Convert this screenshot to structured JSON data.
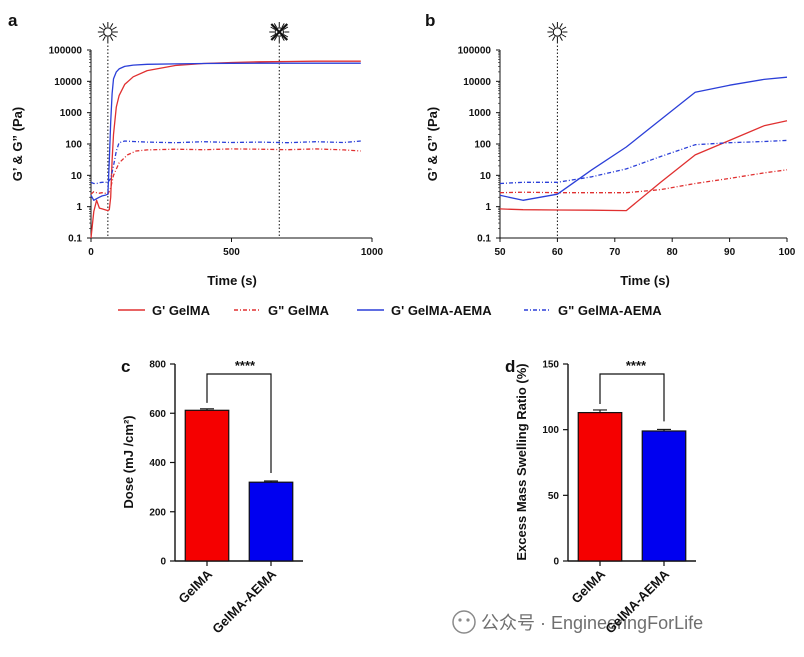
{
  "chart_data": [
    {
      "panel": "a",
      "type": "line",
      "title": "",
      "xlabel": "Time (s)",
      "ylabel": "G’ & G” (Pa)",
      "xlim": [
        0,
        1000
      ],
      "ylim": [
        0.1,
        100000
      ],
      "yscale": "log",
      "xticks": [
        0,
        500,
        1000
      ],
      "yticks": [
        "0.1",
        "1",
        "10",
        "100",
        "1000",
        "10000",
        "100000"
      ],
      "markers": [
        {
          "x": 60,
          "label": "light on"
        },
        {
          "x": 670,
          "label": "light off"
        }
      ],
      "series": [
        {
          "name": "G' GelMA",
          "color": "#e03030",
          "dash": "solid",
          "x": [
            0,
            10,
            20,
            30,
            40,
            50,
            60,
            65,
            70,
            75,
            80,
            90,
            100,
            120,
            150,
            200,
            300,
            400,
            500,
            600,
            700,
            800,
            960
          ],
          "y": [
            0.1,
            0.7,
            1.6,
            0.9,
            0.85,
            0.8,
            0.75,
            0.8,
            2,
            30,
            200,
            1500,
            3500,
            8000,
            14000,
            22000,
            32000,
            37000,
            40000,
            42000,
            43000,
            44000,
            44000
          ]
        },
        {
          "name": "G\" GelMA",
          "color": "#e03030",
          "dash": "dashdot",
          "x": [
            0,
            10,
            20,
            30,
            40,
            50,
            60,
            70,
            80,
            100,
            130,
            160,
            200,
            300,
            400,
            500,
            600,
            700,
            800,
            900,
            960
          ],
          "y": [
            2.5,
            3,
            2.8,
            2.7,
            2.8,
            2.7,
            2.5,
            4,
            10,
            25,
            45,
            60,
            65,
            68,
            66,
            70,
            68,
            66,
            70,
            65,
            60
          ]
        },
        {
          "name": "G' GelMA-AEMA",
          "color": "#2b3fd8",
          "dash": "solid",
          "x": [
            0,
            10,
            20,
            30,
            40,
            50,
            60,
            65,
            70,
            75,
            80,
            90,
            100,
            120,
            150,
            200,
            300,
            400,
            500,
            600,
            700,
            800,
            960
          ],
          "y": [
            2.3,
            1.6,
            1.8,
            2.0,
            2.2,
            2.3,
            2.5,
            30,
            500,
            4000,
            12000,
            20000,
            25000,
            30000,
            33000,
            35000,
            36000,
            37000,
            37500,
            38000,
            38000,
            38000,
            38000
          ]
        },
        {
          "name": "G\" GelMA-AEMA",
          "color": "#2b3fd8",
          "dash": "dashdot",
          "x": [
            0,
            10,
            20,
            30,
            40,
            50,
            60,
            70,
            80,
            90,
            100,
            120,
            150,
            200,
            300,
            400,
            500,
            600,
            700,
            800,
            900,
            960
          ],
          "y": [
            6,
            5.5,
            5.5,
            5.8,
            6,
            6,
            6,
            8,
            20,
            60,
            110,
            125,
            120,
            115,
            110,
            118,
            112,
            115,
            110,
            118,
            112,
            125
          ]
        }
      ]
    },
    {
      "panel": "b",
      "type": "line",
      "title": "",
      "xlabel": "Time (s)",
      "ylabel": "G’ & G” (Pa)",
      "xlim": [
        50,
        100
      ],
      "ylim": [
        0.1,
        100000
      ],
      "yscale": "log",
      "xticks": [
        50,
        60,
        70,
        80,
        90,
        100
      ],
      "yticks": [
        "0.1",
        "1",
        "10",
        "100",
        "1000",
        "10000",
        "100000"
      ],
      "markers": [
        {
          "x": 60,
          "label": "light on"
        }
      ],
      "series": [
        {
          "name": "G' GelMA",
          "color": "#e03030",
          "dash": "solid",
          "x": [
            50,
            54,
            60,
            66,
            72,
            78,
            84,
            90,
            96,
            100
          ],
          "y": [
            0.85,
            0.8,
            0.78,
            0.77,
            0.75,
            6,
            45,
            130,
            380,
            550
          ]
        },
        {
          "name": "G\" GelMA",
          "color": "#e03030",
          "dash": "dashdot",
          "x": [
            50,
            54,
            60,
            66,
            72,
            78,
            84,
            90,
            96,
            100
          ],
          "y": [
            2.8,
            2.9,
            2.8,
            2.8,
            2.8,
            3.5,
            5.5,
            8,
            12,
            15
          ]
        },
        {
          "name": "G' GelMA-AEMA",
          "color": "#2b3fd8",
          "dash": "solid",
          "x": [
            50,
            54,
            60,
            66,
            72,
            78,
            84,
            90,
            96,
            100
          ],
          "y": [
            2.3,
            1.6,
            2.5,
            15,
            80,
            600,
            4500,
            7500,
            11500,
            13500
          ]
        },
        {
          "name": "G\" GelMA-AEMA",
          "color": "#2b3fd8",
          "dash": "dashdot",
          "x": [
            50,
            54,
            60,
            66,
            72,
            78,
            84,
            90,
            96,
            100
          ],
          "y": [
            5.5,
            6,
            6,
            9,
            16,
            40,
            95,
            110,
            120,
            130
          ]
        }
      ]
    },
    {
      "panel": "c",
      "type": "bar",
      "title": "",
      "xlabel": "",
      "ylabel": "Dose (mJ /cm²)",
      "ylim": [
        0,
        800
      ],
      "yticks": [
        "0",
        "200",
        "400",
        "600",
        "800"
      ],
      "categories": [
        "GelMA",
        "GelMA-AEMA"
      ],
      "values": [
        612,
        320
      ],
      "errors": [
        6,
        5
      ],
      "colors": [
        "#f50000",
        "#0000f0"
      ],
      "significance": "****"
    },
    {
      "panel": "d",
      "type": "bar",
      "title": "",
      "xlabel": "",
      "ylabel": "Excess Mass Swelling Ratio (%)",
      "ylim": [
        0,
        150
      ],
      "yticks": [
        "0",
        "50",
        "100",
        "150"
      ],
      "categories": [
        "GelMA",
        "GelMA-AEMA"
      ],
      "values": [
        113,
        99
      ],
      "errors": [
        2,
        1.2
      ],
      "colors": [
        "#f50000",
        "#0000f0"
      ],
      "significance": "****"
    }
  ],
  "legend": [
    "G' GelMA",
    "G\" GelMA",
    "G' GelMA-AEMA",
    "G\" GelMA-AEMA"
  ],
  "watermark": "公众号 · EngineeringForLife",
  "colors": {
    "gelma": "#e03030",
    "aema": "#2b3fd8"
  }
}
